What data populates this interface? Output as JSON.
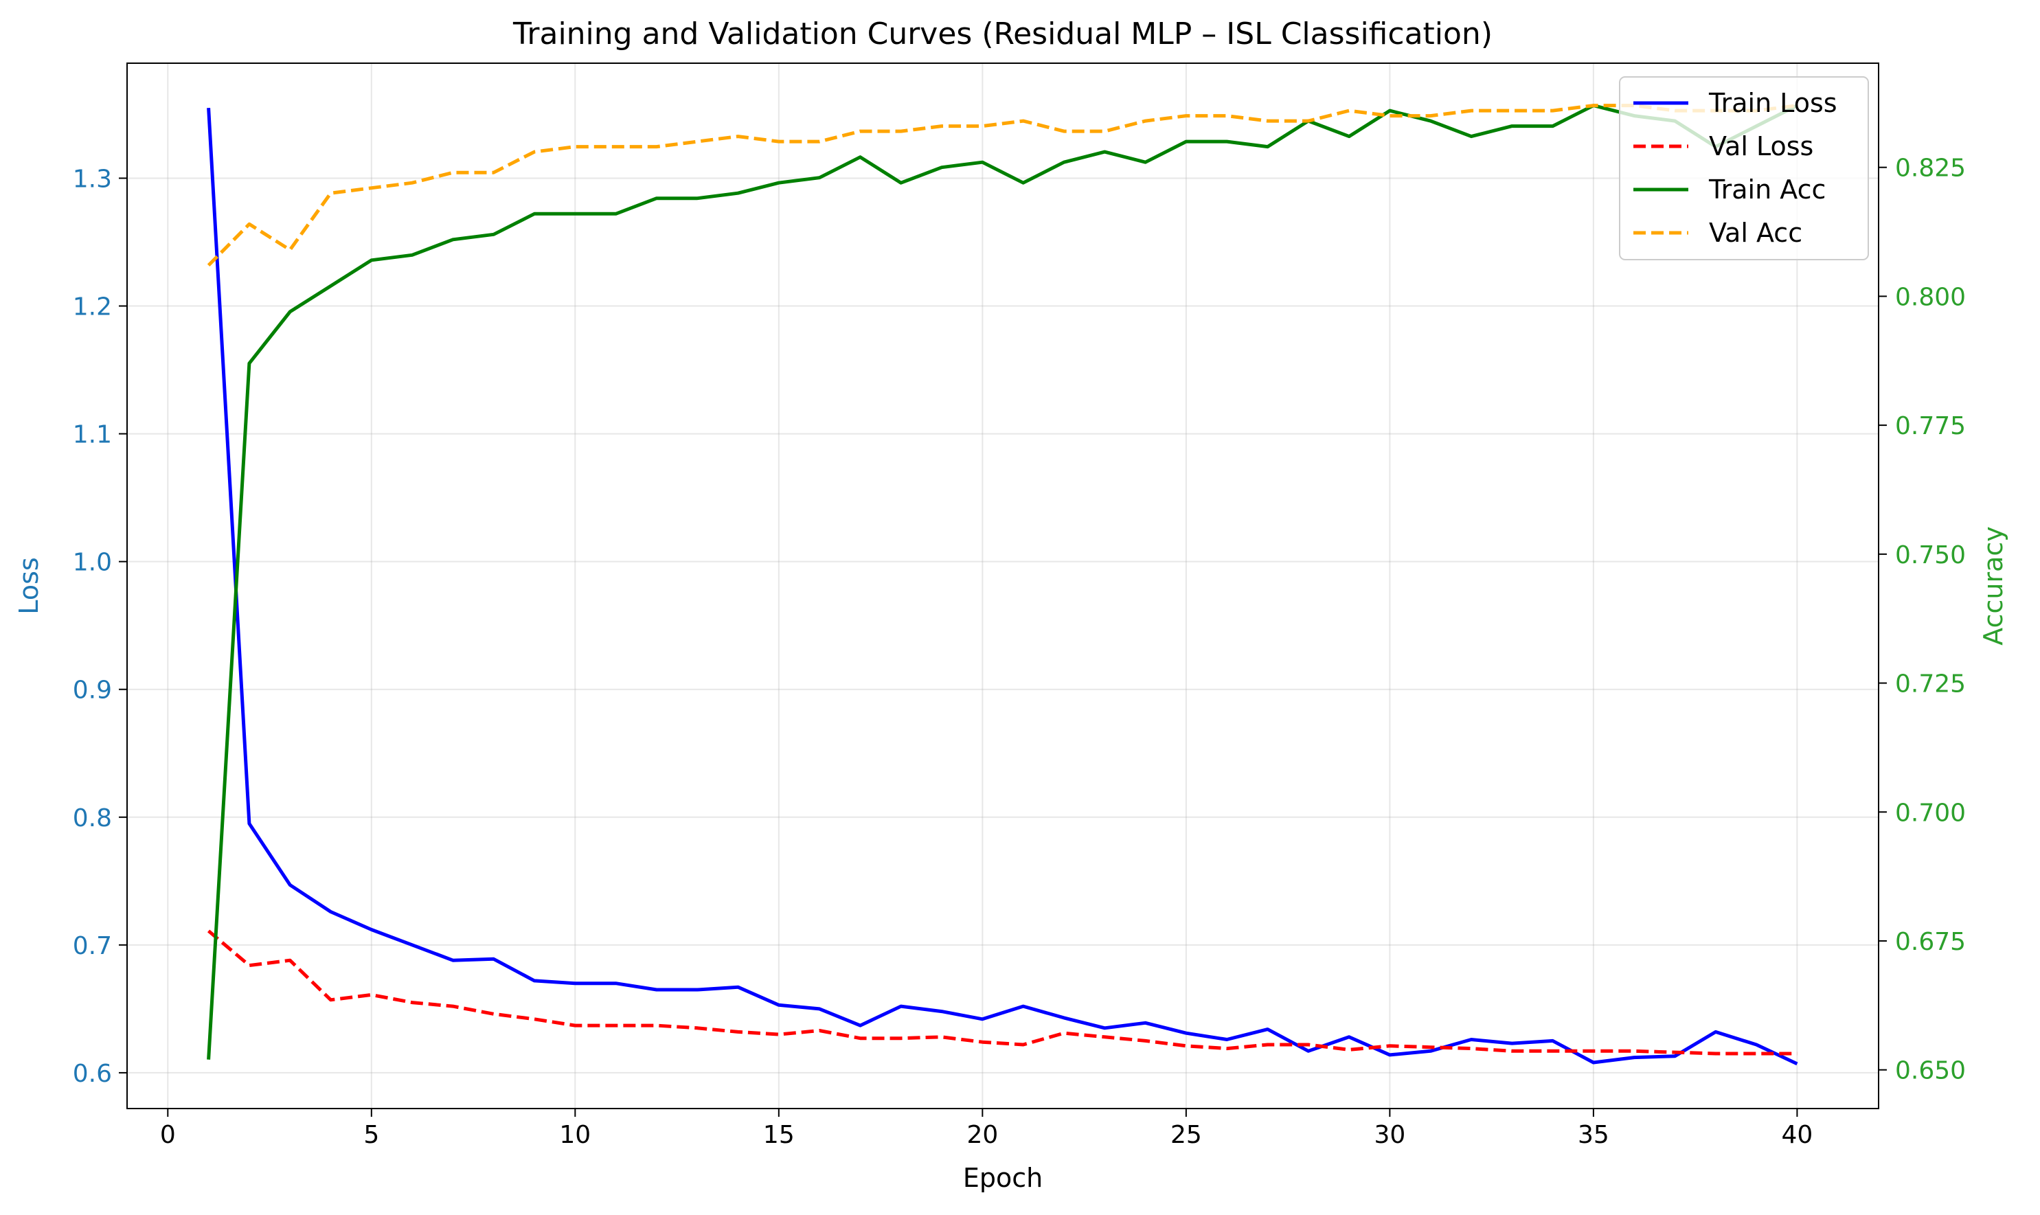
{
  "chart_data": {
    "type": "line",
    "title": "Training and Validation Curves (Residual MLP – ISL Classification)",
    "xlabel": "Epoch",
    "ylabel_left": "Loss",
    "ylabel_right": "Accuracy",
    "xlim": [
      -1,
      42
    ],
    "ylim_left": [
      0.572,
      1.39
    ],
    "ylim_right": [
      0.6425,
      0.8452
    ],
    "x_ticks": [
      0,
      5,
      10,
      15,
      20,
      25,
      30,
      35,
      40
    ],
    "x_tick_labels": [
      "0",
      "5",
      "10",
      "15",
      "20",
      "25",
      "30",
      "35",
      "40"
    ],
    "y_left_ticks": [
      0.6,
      0.7,
      0.8,
      0.9,
      1.0,
      1.1,
      1.2,
      1.3
    ],
    "y_left_tick_labels": [
      "0.6",
      "0.7",
      "0.8",
      "0.9",
      "1.0",
      "1.1",
      "1.2",
      "1.3"
    ],
    "y_right_ticks": [
      0.65,
      0.675,
      0.7,
      0.725,
      0.75,
      0.775,
      0.8,
      0.825
    ],
    "y_right_tick_labels": [
      "0.650",
      "0.675",
      "0.700",
      "0.725",
      "0.750",
      "0.775",
      "0.800",
      "0.825"
    ],
    "grid": true,
    "legend_position": "top-right",
    "colors": {
      "left_axis": "#1f77b4",
      "right_axis": "#2ca02c",
      "train_loss": "#0000ff",
      "val_loss": "#ff0000",
      "train_acc": "#008000",
      "val_acc": "#ffa500"
    },
    "x": [
      1,
      2,
      3,
      4,
      5,
      6,
      7,
      8,
      9,
      10,
      11,
      12,
      13,
      14,
      15,
      16,
      17,
      18,
      19,
      20,
      21,
      22,
      23,
      24,
      25,
      26,
      27,
      28,
      29,
      30,
      31,
      32,
      33,
      34,
      35,
      36,
      37,
      38,
      39,
      40
    ],
    "series": [
      {
        "name": "Train Loss",
        "axis": "left",
        "style": "solid",
        "color_key": "train_loss",
        "values": [
          1.355,
          0.795,
          0.747,
          0.726,
          0.712,
          0.7,
          0.688,
          0.689,
          0.672,
          0.67,
          0.67,
          0.665,
          0.665,
          0.667,
          0.653,
          0.65,
          0.637,
          0.652,
          0.648,
          0.642,
          0.652,
          0.643,
          0.635,
          0.639,
          0.631,
          0.626,
          0.634,
          0.617,
          0.628,
          0.614,
          0.617,
          0.626,
          0.623,
          0.625,
          0.608,
          0.612,
          0.613,
          0.632,
          0.622,
          0.607
        ]
      },
      {
        "name": "Val Loss",
        "axis": "left",
        "style": "dashed",
        "color_key": "val_loss",
        "values": [
          0.711,
          0.684,
          0.688,
          0.657,
          0.661,
          0.655,
          0.652,
          0.646,
          0.642,
          0.637,
          0.637,
          0.637,
          0.635,
          0.632,
          0.63,
          0.633,
          0.627,
          0.627,
          0.628,
          0.624,
          0.622,
          0.631,
          0.628,
          0.625,
          0.621,
          0.619,
          0.622,
          0.622,
          0.618,
          0.621,
          0.62,
          0.619,
          0.617,
          0.617,
          0.617,
          0.617,
          0.616,
          0.615,
          0.615,
          0.615
        ]
      },
      {
        "name": "Train Acc",
        "axis": "right",
        "style": "solid",
        "color_key": "train_acc",
        "values": [
          0.652,
          0.787,
          0.797,
          0.802,
          0.807,
          0.808,
          0.811,
          0.812,
          0.816,
          0.816,
          0.816,
          0.819,
          0.819,
          0.82,
          0.822,
          0.823,
          0.827,
          0.822,
          0.825,
          0.826,
          0.822,
          0.826,
          0.828,
          0.826,
          0.83,
          0.83,
          0.829,
          0.834,
          0.831,
          0.836,
          0.834,
          0.831,
          0.833,
          0.833,
          0.837,
          0.835,
          0.834,
          0.829,
          0.833,
          0.837
        ]
      },
      {
        "name": "Val Acc",
        "axis": "right",
        "style": "dashed",
        "color_key": "val_acc",
        "values": [
          0.806,
          0.814,
          0.809,
          0.82,
          0.821,
          0.822,
          0.824,
          0.824,
          0.828,
          0.829,
          0.829,
          0.829,
          0.83,
          0.831,
          0.83,
          0.83,
          0.832,
          0.832,
          0.833,
          0.833,
          0.834,
          0.832,
          0.832,
          0.834,
          0.835,
          0.835,
          0.834,
          0.834,
          0.836,
          0.835,
          0.835,
          0.836,
          0.836,
          0.836,
          0.837,
          0.837,
          0.836,
          0.836,
          0.836,
          0.837
        ]
      }
    ]
  }
}
